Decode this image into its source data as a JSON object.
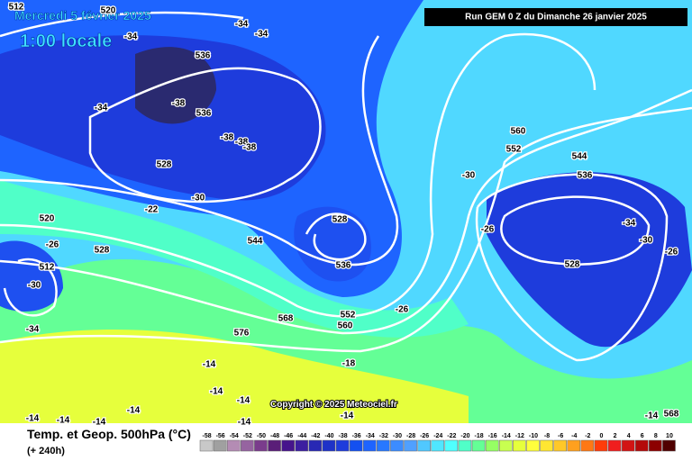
{
  "header": {
    "date": "Mercredi 5 février 2025",
    "time": "1:00 locale",
    "run": "Run GEM 0 Z du Dimanche 26 janvier 2025"
  },
  "copyright": "Copyright © 2025 Meteociel.fr",
  "footer": {
    "title": "Temp. et Geop. 500hPa (°C)",
    "lead": "(+ 240h)"
  },
  "contour_labels": [
    "512",
    "520",
    "-34",
    "-34",
    "-34",
    "536",
    "-38",
    "-34",
    "536",
    "-38",
    "-38",
    "-38",
    "528",
    "-30",
    "-22",
    "520",
    "-26",
    "528",
    "512",
    "-30",
    "-34",
    "544",
    "528",
    "536",
    "568",
    "552",
    "560",
    "-26",
    "576",
    "-18",
    "-14",
    "-14",
    "-14",
    "-14",
    "-14",
    "-14",
    "-14",
    "-14",
    "-14",
    "560",
    "552",
    "544",
    "536",
    "-30",
    "-34",
    "-30",
    "-26",
    "528",
    "-26",
    "-14",
    "568"
  ],
  "scale": {
    "values": [
      -58,
      -56,
      -54,
      -52,
      -50,
      -48,
      -46,
      -44,
      -42,
      -40,
      -38,
      -36,
      -34,
      -32,
      -30,
      -28,
      -26,
      -24,
      -22,
      -20,
      -18,
      -16,
      -14,
      -12,
      -10,
      -8,
      -6,
      -4,
      -2,
      0,
      2,
      4,
      6,
      8,
      10
    ],
    "colors": [
      "#c8c8c8",
      "#a0a0a0",
      "#b48cb4",
      "#9664a0",
      "#7a3c8c",
      "#5a1e78",
      "#46148c",
      "#3c1ea0",
      "#2828b4",
      "#1e32c8",
      "#1e3cdc",
      "#1450f0",
      "#1e64ff",
      "#2878ff",
      "#3c8cff",
      "#50a0ff",
      "#50c8ff",
      "#50e6ff",
      "#50ffff",
      "#50ffc8",
      "#64ff96",
      "#96ff64",
      "#c8ff50",
      "#e6ff3c",
      "#ffff3c",
      "#ffe632",
      "#ffc828",
      "#ffa01e",
      "#ff7814",
      "#ff3c0a",
      "#f01e1e",
      "#d21414",
      "#b40a0a",
      "#8c0000",
      "#500000"
    ]
  }
}
